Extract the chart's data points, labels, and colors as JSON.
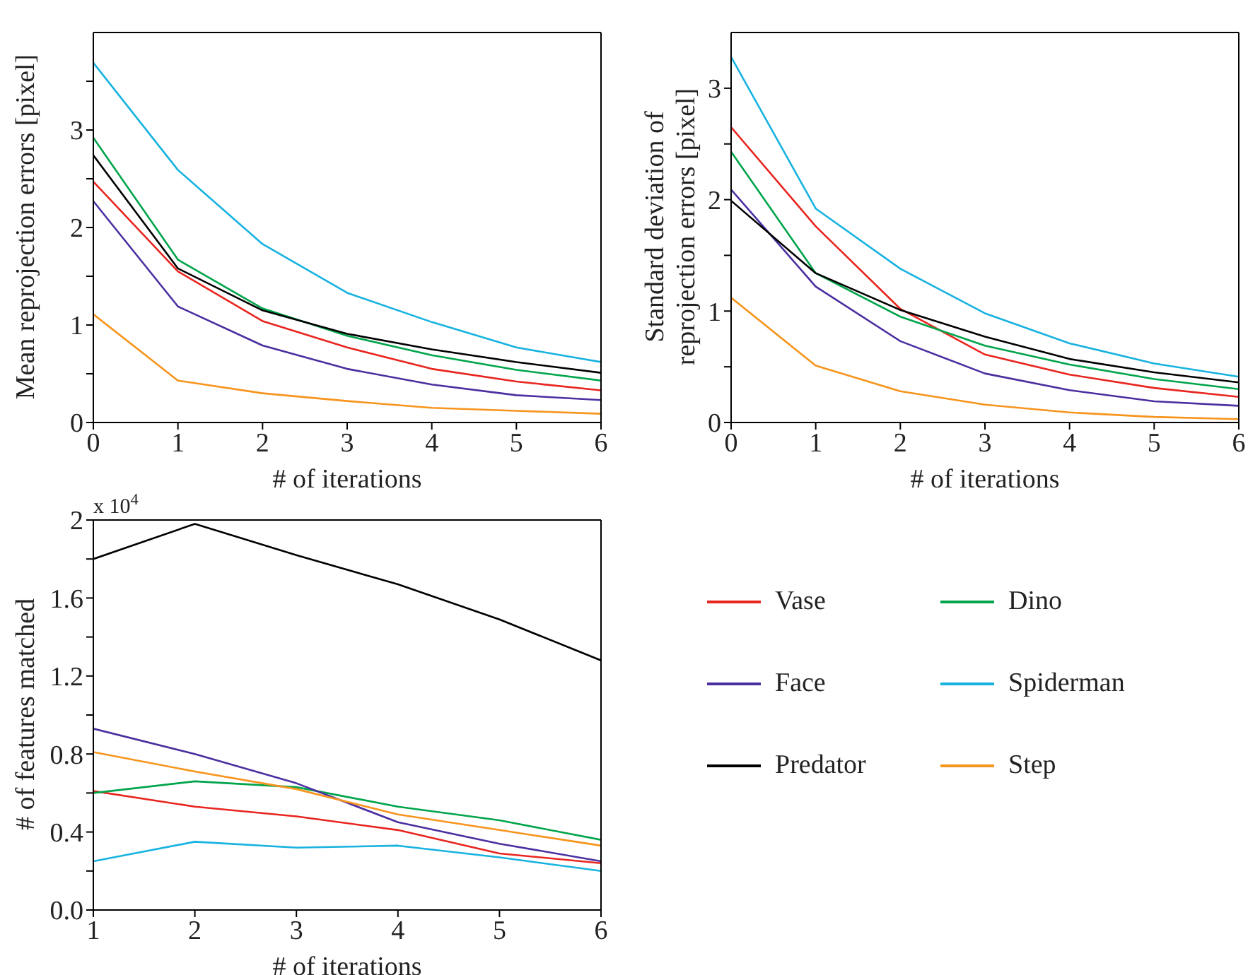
{
  "chart_data": [
    {
      "type": "line",
      "xlabel": "# of iterations",
      "ylabel": "Mean reprojection errors [pixel]",
      "x": [
        0,
        1,
        2,
        3,
        4,
        5,
        6
      ],
      "xlim": [
        0,
        6
      ],
      "xticks": [
        0,
        1,
        2,
        3,
        4,
        5,
        6
      ],
      "ylim": [
        0,
        4
      ],
      "yticks": [
        0,
        {
          "value": 0.5,
          "label": null
        },
        1,
        {
          "value": 1.5,
          "label": null
        },
        2,
        {
          "value": 2.5,
          "label": null
        },
        3,
        {
          "value": 3.5,
          "label": null
        }
      ],
      "series": [
        {
          "color": "#e8251f",
          "values": [
            2.47,
            1.55,
            1.04,
            0.77,
            0.55,
            0.42,
            0.33
          ]
        },
        {
          "color": "#00a44a",
          "values": [
            2.92,
            1.67,
            1.17,
            0.89,
            0.69,
            0.54,
            0.43
          ]
        },
        {
          "color": "#4b2fa0",
          "values": [
            2.27,
            1.19,
            0.79,
            0.55,
            0.39,
            0.28,
            0.23
          ]
        },
        {
          "color": "#17b2e0",
          "values": [
            3.69,
            2.59,
            1.83,
            1.33,
            1.03,
            0.77,
            0.62
          ]
        },
        {
          "color": "#000000",
          "values": [
            2.74,
            1.58,
            1.15,
            0.91,
            0.75,
            0.62,
            0.51
          ]
        },
        {
          "color": "#f7941d",
          "values": [
            1.11,
            0.43,
            0.3,
            0.22,
            0.15,
            0.12,
            0.09
          ]
        }
      ]
    },
    {
      "type": "line",
      "xlabel": "# of iterations",
      "ylabel": "Standard deviation of\nreprojection errors [pixel]",
      "x": [
        0,
        1,
        2,
        3,
        4,
        5,
        6
      ],
      "xlim": [
        0,
        6
      ],
      "xticks": [
        0,
        1,
        2,
        3,
        4,
        5,
        6
      ],
      "ylim": [
        0,
        3.5
      ],
      "yticks": [
        0,
        {
          "value": 0.5,
          "label": null
        },
        1,
        {
          "value": 1.5,
          "label": null
        },
        2,
        {
          "value": 2.5,
          "label": null
        },
        3
      ],
      "series": [
        {
          "color": "#e8251f",
          "values": [
            2.65,
            1.76,
            1.02,
            0.61,
            0.43,
            0.31,
            0.23
          ]
        },
        {
          "color": "#00a44a",
          "values": [
            2.43,
            1.34,
            0.95,
            0.69,
            0.52,
            0.39,
            0.3
          ]
        },
        {
          "color": "#4b2fa0",
          "values": [
            2.09,
            1.22,
            0.73,
            0.44,
            0.29,
            0.19,
            0.15
          ]
        },
        {
          "color": "#17b2e0",
          "values": [
            3.28,
            1.92,
            1.38,
            0.98,
            0.71,
            0.53,
            0.41
          ]
        },
        {
          "color": "#000000",
          "values": [
            1.99,
            1.34,
            1.01,
            0.77,
            0.57,
            0.45,
            0.36
          ]
        },
        {
          "color": "#f7941d",
          "values": [
            1.12,
            0.51,
            0.28,
            0.16,
            0.09,
            0.05,
            0.03
          ]
        }
      ]
    },
    {
      "type": "line",
      "xlabel": "# of iterations",
      "ylabel": "# of features matched",
      "annotations": [
        "x 10$^{4}$"
      ],
      "legend": "right",
      "x": [
        1,
        2,
        3,
        4,
        5,
        6
      ],
      "xlim": [
        1,
        6
      ],
      "xticks": [
        1,
        2,
        3,
        4,
        5,
        6
      ],
      "ylim": [
        0,
        2
      ],
      "yticks": [
        {
          "value": 0,
          "label": "0.0"
        },
        {
          "value": 0.2,
          "label": null
        },
        {
          "value": 0.4,
          "label": "0.4"
        },
        {
          "value": 0.6,
          "label": null
        },
        {
          "value": 0.8,
          "label": "0.8"
        },
        {
          "value": 1.0,
          "label": null
        },
        {
          "value": 1.2,
          "label": "1.2"
        },
        {
          "value": 1.4,
          "label": null
        },
        {
          "value": 1.6,
          "label": "1.6"
        },
        {
          "value": 1.8,
          "label": null
        },
        2
      ],
      "series": [
        {
          "name": "Vase",
          "color": "#e8251f",
          "values": [
            0.61,
            0.53,
            0.48,
            0.41,
            0.29,
            0.24
          ]
        },
        {
          "name": "Dino",
          "color": "#00a44a",
          "values": [
            0.6,
            0.66,
            0.63,
            0.53,
            0.46,
            0.36
          ]
        },
        {
          "name": "Face",
          "color": "#4b2fa0",
          "values": [
            0.93,
            0.8,
            0.65,
            0.45,
            0.34,
            0.25
          ]
        },
        {
          "name": "Spiderman",
          "color": "#17b2e0",
          "values": [
            0.25,
            0.35,
            0.32,
            0.33,
            0.27,
            0.2
          ]
        },
        {
          "name": "Predator",
          "color": "#000000",
          "values": [
            1.8,
            1.98,
            1.82,
            1.67,
            1.49,
            1.28
          ]
        },
        {
          "name": "Step",
          "color": "#f7941d",
          "values": [
            0.81,
            0.71,
            0.62,
            0.49,
            0.41,
            0.33
          ]
        }
      ]
    }
  ]
}
